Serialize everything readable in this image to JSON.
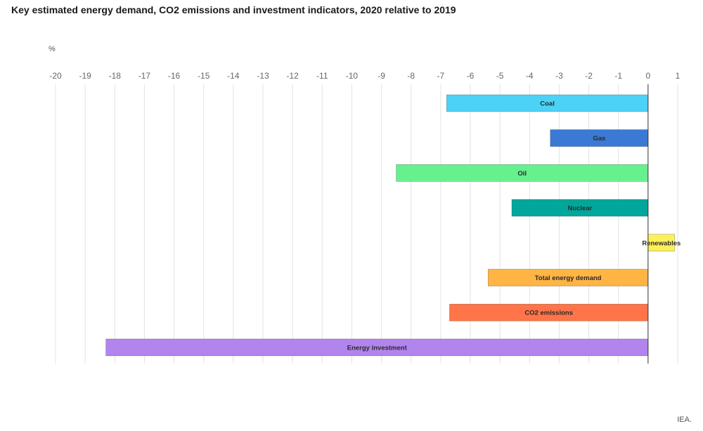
{
  "page": {
    "title": "Key estimated energy demand, CO2 emissions and investment indicators, 2020 relative to 2019",
    "unit": "%",
    "source": "IEA."
  },
  "chart_data": {
    "type": "bar",
    "orientation": "horizontal",
    "title": "Key estimated energy demand, CO2 emissions and investment indicators, 2020 relative to 2019",
    "xlabel": "%",
    "ylabel": "",
    "xlim": [
      -20,
      1
    ],
    "xticks": [
      -20,
      -19,
      -18,
      -17,
      -16,
      -15,
      -14,
      -13,
      -12,
      -11,
      -10,
      -9,
      -8,
      -7,
      -6,
      -5,
      -4,
      -3,
      -2,
      -1,
      0,
      1
    ],
    "axis_position": "top",
    "grid": true,
    "legend": "none",
    "categories": [
      "Coal",
      "Gas",
      "Oil",
      "Nuclear",
      "Renewables",
      "Total energy demand",
      "CO2 emissions",
      "Energy investment"
    ],
    "values": [
      -6.8,
      -3.3,
      -8.5,
      -4.6,
      0.9,
      -5.4,
      -6.7,
      -18.3
    ],
    "colors": [
      "#4dd2f7",
      "#3a7ad5",
      "#66f08e",
      "#00a79a",
      "#fdf159",
      "#ffb444",
      "#ff7448",
      "#b284ee"
    ]
  }
}
